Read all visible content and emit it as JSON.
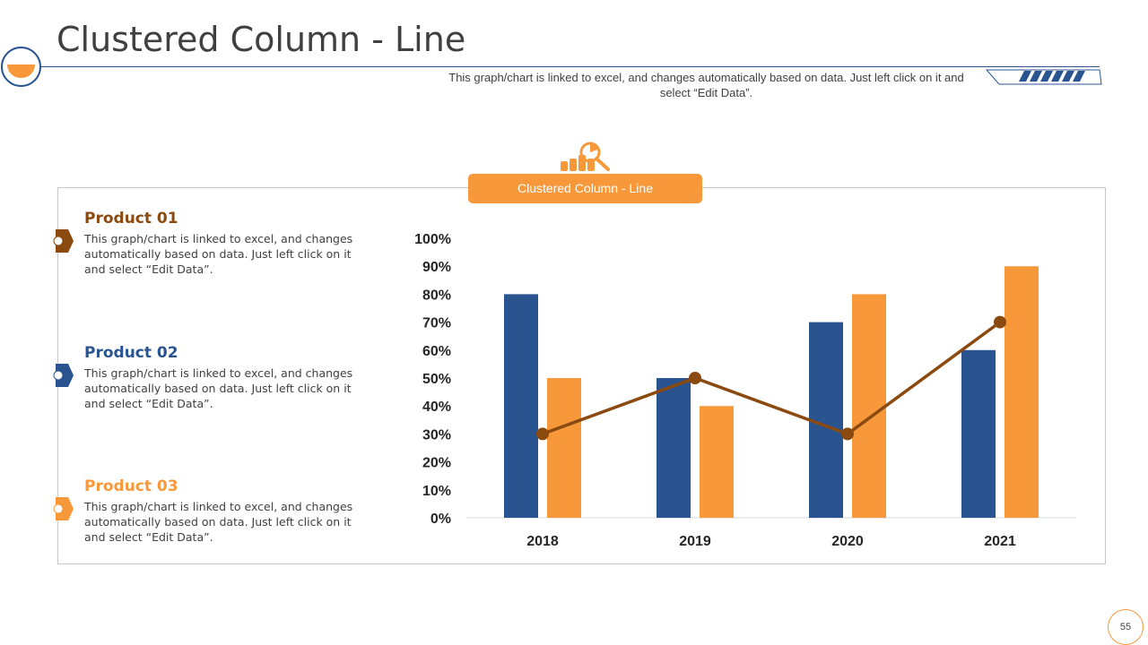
{
  "slide": {
    "title": "Clustered Column - Line",
    "subtitle": "This graph/chart is linked to excel, and changes automatically based on data. Just left click on it and select “Edit Data”.",
    "tab_label": "Clustered Column - Line",
    "page_number": "55"
  },
  "products": [
    {
      "name": "Product 01",
      "text": "This graph/chart is linked to excel, and changes automatically based on data. Just left click on it and select “Edit Data”.",
      "color": "#8b4a0f"
    },
    {
      "name": "Product 02",
      "text": "This graph/chart is linked to excel, and changes automatically based on data. Just left click on it and select “Edit Data”.",
      "color": "#2a5490"
    },
    {
      "name": "Product 03",
      "text": "This graph/chart is linked to excel, and changes automatically based on data. Just left click on it and select “Edit Data”.",
      "color": "#f7993a"
    }
  ],
  "colors": {
    "blue": "#2a5490",
    "orange": "#f7993a",
    "brown": "#8b4a0f",
    "accent": "#f7993a"
  },
  "chart_data": {
    "type": "bar",
    "categories": [
      "2018",
      "2019",
      "2020",
      "2021"
    ],
    "series": [
      {
        "values": [
          80,
          50,
          70,
          60
        ],
        "kind": "column",
        "color": "#2a5490"
      },
      {
        "values": [
          50,
          40,
          80,
          90
        ],
        "kind": "column",
        "color": "#f7993a"
      },
      {
        "values": [
          30,
          50,
          30,
          70
        ],
        "kind": "line",
        "color": "#8b4a0f"
      }
    ],
    "ylim": [
      0,
      100
    ],
    "yticks": [
      "0%",
      "10%",
      "20%",
      "30%",
      "40%",
      "50%",
      "60%",
      "70%",
      "80%",
      "90%",
      "100%"
    ],
    "grid": false,
    "legend": "none"
  }
}
